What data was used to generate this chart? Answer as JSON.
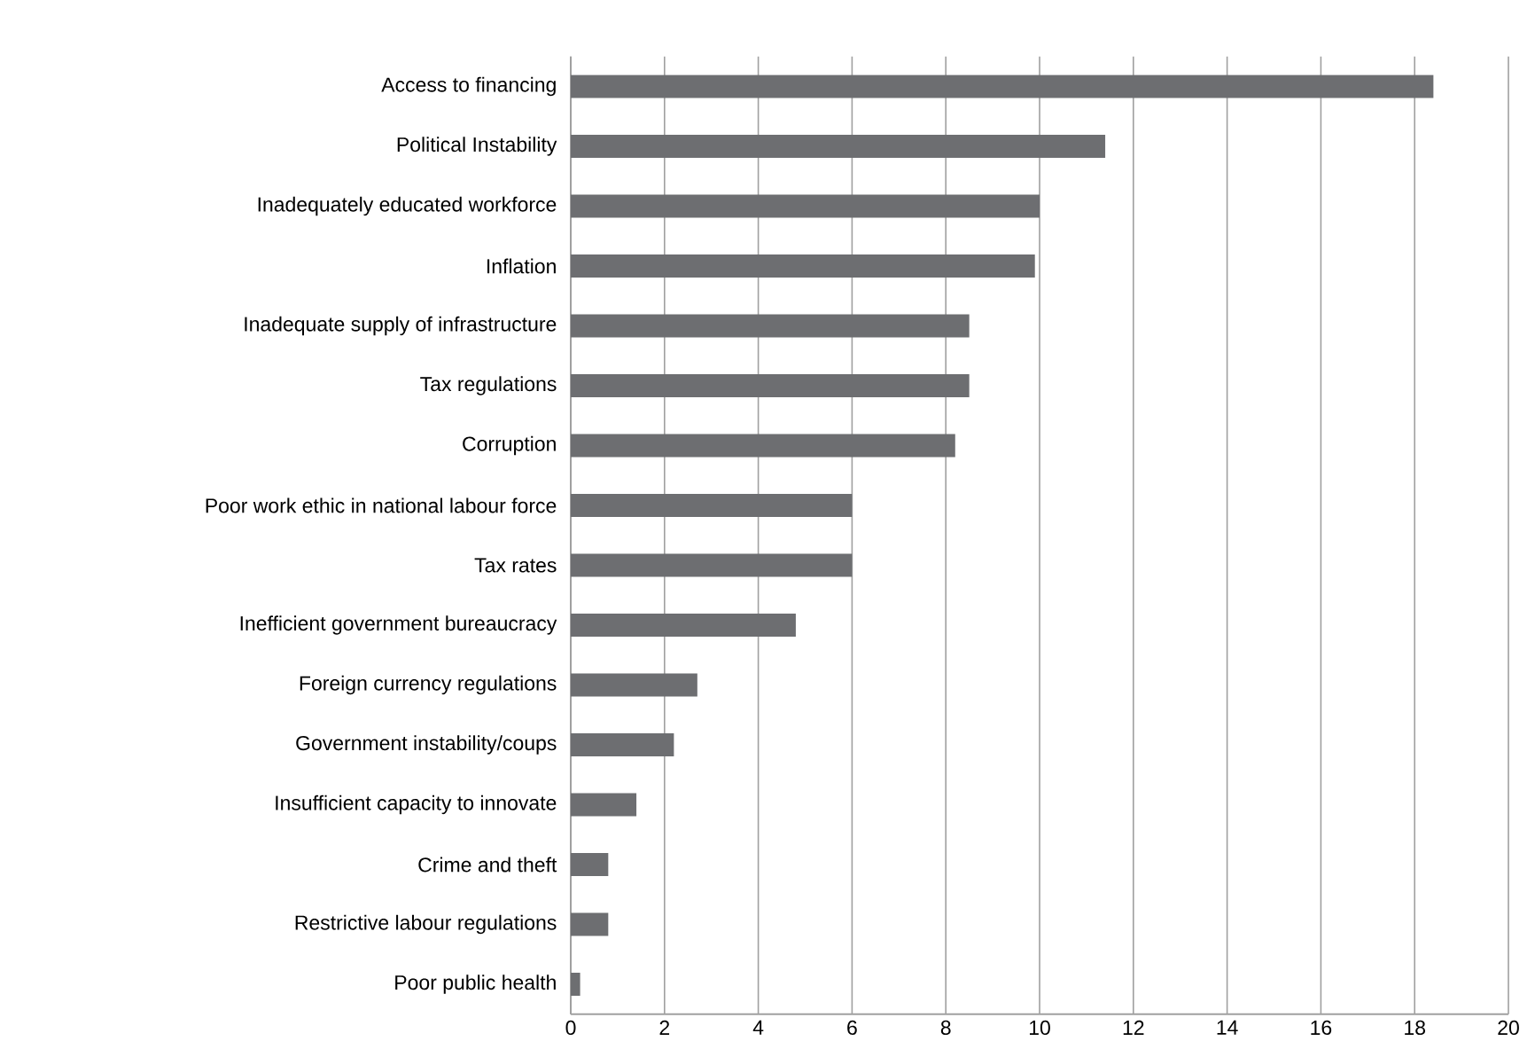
{
  "chart_data": {
    "type": "bar",
    "orientation": "horizontal",
    "categories": [
      "Access to financing",
      "Political Instability",
      "Inadequately educated workforce",
      "Inflation",
      "Inadequate supply of infrastructure",
      "Tax regulations",
      "Corruption",
      "Poor work ethic in national labour force",
      "Tax rates",
      "Inefficient government bureaucracy",
      "Foreign currency regulations",
      "Government instability/coups",
      "Insufficient capacity to innovate",
      "Crime and theft",
      "Restrictive labour regulations",
      "Poor public health"
    ],
    "values": [
      18.4,
      11.4,
      10.0,
      9.9,
      8.5,
      8.5,
      8.2,
      6.0,
      6.0,
      4.8,
      2.7,
      2.2,
      1.4,
      0.8,
      0.8,
      0.2
    ],
    "color": "#6d6e71",
    "xlim": [
      0,
      20
    ],
    "xticks": [
      0,
      2,
      4,
      6,
      8,
      10,
      12,
      14,
      16,
      18,
      20
    ],
    "grid": "x"
  }
}
